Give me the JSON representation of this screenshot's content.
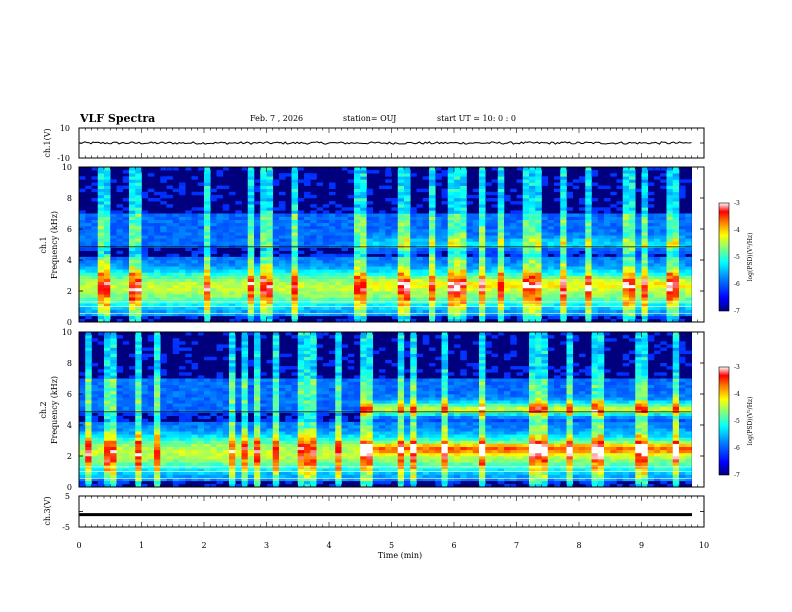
{
  "header": {
    "title": "VLF Spectra",
    "date": "Feb. 7 , 2026",
    "station": "station= OUJ",
    "start_ut": "start  UT =   10: 0  : 0"
  },
  "colors": {
    "colormap": [
      "#00007f",
      "#0000ff",
      "#0080ff",
      "#00ffff",
      "#80ff80",
      "#ffff00",
      "#ff8000",
      "#ff0000",
      "#ffffff"
    ],
    "trace": "#000000"
  },
  "chart_data": [
    {
      "type": "line",
      "panel": "waveform-ch1",
      "ylabel": "ch.1(V)",
      "ylim": [
        -10,
        10
      ],
      "ytick_labels": [
        "10",
        "-10"
      ],
      "x": [
        0,
        10
      ],
      "baseline_value": 0
    },
    {
      "type": "heatmap",
      "panel": "spectrogram-ch1",
      "ylabel_line1": "ch.1",
      "ylabel_line2": "Frequency (kHz)",
      "ylim": [
        0,
        10
      ],
      "ytick_labels": [
        "0",
        "2",
        "4",
        "6",
        "8",
        "10"
      ],
      "xlim": [
        0,
        9.8
      ],
      "bands_khz": [
        0.5,
        2.5,
        5.0
      ],
      "colorbar": {
        "label": "log(PSD)(V²/Hz)",
        "range": [
          -7,
          -3
        ],
        "tick_labels": [
          "-3",
          "-4",
          "-5",
          "-6",
          "-7"
        ]
      }
    },
    {
      "type": "heatmap",
      "panel": "spectrogram-ch2",
      "ylabel_line1": "ch.2",
      "ylabel_line2": "Frequency (kHz)",
      "ylim": [
        0,
        10
      ],
      "ytick_labels": [
        "0",
        "2",
        "4",
        "6",
        "8",
        "10"
      ],
      "xlim": [
        0,
        9.8
      ],
      "bands_khz": [
        0.5,
        2.5,
        5.0
      ],
      "colorbar": {
        "label": "log(PSD)(V²/Hz)",
        "range": [
          -7,
          -3
        ],
        "tick_labels": [
          "-3",
          "-4",
          "-5",
          "-6",
          "-7"
        ]
      }
    },
    {
      "type": "line",
      "panel": "waveform-ch3",
      "ylabel": "ch.3(V)",
      "ylim": [
        -5,
        5
      ],
      "ytick_labels": [
        "5",
        "0",
        "-5"
      ],
      "x": [
        0,
        10
      ],
      "baseline_value": -1
    }
  ],
  "xaxis": {
    "label": "Time  (min)",
    "range": [
      0,
      10
    ],
    "tick_labels": [
      "0",
      "1",
      "2",
      "3",
      "4",
      "5",
      "6",
      "7",
      "8",
      "9",
      "10"
    ]
  }
}
